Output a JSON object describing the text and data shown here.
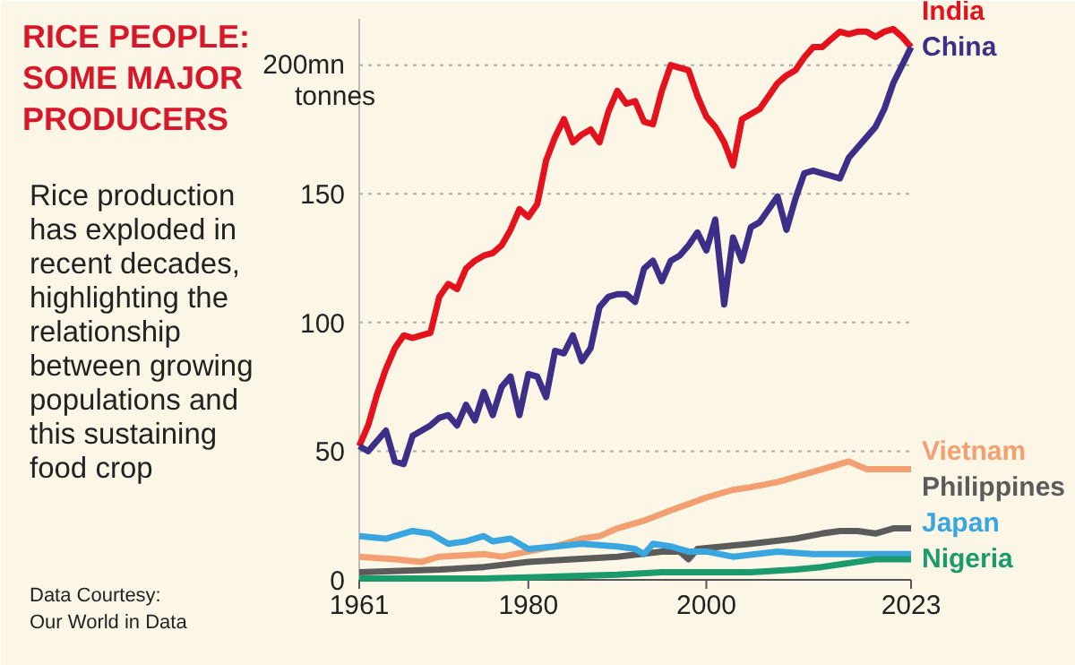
{
  "chart_data": {
    "type": "line",
    "title": "RICE PEOPLE: SOME MAJOR PRODUCERS",
    "subtitle": "Rice production has exploded in recent decades, highlighting the relationship between growing populations and this sustaining food crop",
    "ylabel": "tonnes",
    "annotations": [
      "Data Courtesy: Our World in Data"
    ],
    "xlim": [
      1961,
      2023
    ],
    "xticks": [
      1961,
      1980,
      2000,
      2023
    ],
    "ylim": [
      0,
      218
    ],
    "yticks": [
      0,
      50,
      100,
      150,
      {
        "value": 200,
        "label": "200mn"
      }
    ],
    "grid": "y",
    "legend": false,
    "line_style": "solid",
    "marker": "none",
    "series": [
      {
        "name": "India",
        "color": "#e3121c",
        "x": [
          1961,
          1962,
          1963,
          1964,
          1965,
          1966,
          1967,
          1968,
          1969,
          1970,
          1971,
          1972,
          1973,
          1974,
          1975,
          1976,
          1977,
          1978,
          1979,
          1980,
          1981,
          1982,
          1983,
          1984,
          1985,
          1986,
          1987,
          1988,
          1989,
          1990,
          1991,
          1992,
          1993,
          1994,
          1995,
          1996,
          1997,
          1998,
          1999,
          2000,
          2001,
          2002,
          2003,
          2004,
          2005,
          2006,
          2007,
          2008,
          2009,
          2010,
          2011,
          2012,
          2013,
          2014,
          2015,
          2016,
          2017,
          2018,
          2019,
          2020,
          2021,
          2022,
          2023
        ],
        "values": [
          52,
          60,
          72,
          82,
          90,
          95,
          94,
          95,
          96,
          110,
          115,
          113,
          121,
          124,
          126,
          127,
          130,
          136,
          144,
          141,
          146,
          163,
          172,
          179,
          170,
          173,
          175,
          170,
          182,
          190,
          185,
          186,
          178,
          177,
          190,
          200,
          199,
          198,
          188,
          180,
          176,
          170,
          161,
          179,
          181,
          183,
          188,
          193,
          196,
          198,
          203,
          207,
          207,
          210,
          213,
          212,
          213,
          213,
          211,
          213,
          214,
          211,
          207
        ]
      },
      {
        "name": "China",
        "color": "#3d2e88",
        "x": [
          1961,
          1962,
          1963,
          1964,
          1965,
          1966,
          1967,
          1968,
          1969,
          1970,
          1971,
          1972,
          1973,
          1974,
          1975,
          1976,
          1977,
          1978,
          1979,
          1980,
          1981,
          1982,
          1983,
          1984,
          1985,
          1986,
          1987,
          1988,
          1989,
          1990,
          1991,
          1992,
          1993,
          1994,
          1995,
          1996,
          1997,
          1998,
          1999,
          2000,
          2001,
          2002,
          2003,
          2004,
          2005,
          2006,
          2007,
          2008,
          2009,
          2010,
          2011,
          2012,
          2013,
          2014,
          2015,
          2016,
          2017,
          2018,
          2019,
          2020,
          2021,
          2022,
          2023
        ],
        "values": [
          52,
          50,
          54,
          58,
          46,
          45,
          56,
          58,
          60,
          63,
          64,
          60,
          68,
          62,
          73,
          64,
          75,
          79,
          64,
          80,
          79,
          71,
          89,
          88,
          95,
          85,
          90,
          106,
          110,
          111,
          111,
          108,
          121,
          124,
          116,
          124,
          126,
          130,
          135,
          128,
          140,
          107,
          133,
          124,
          137,
          139,
          144,
          149,
          136,
          148,
          158,
          159,
          158,
          157,
          156,
          164,
          168,
          172,
          176,
          183,
          193,
          200,
          207
        ]
      },
      {
        "name": "Vietnam",
        "color": "#f2a072",
        "x": [
          1961,
          1965,
          1968,
          1970,
          1975,
          1977,
          1980,
          1983,
          1986,
          1988,
          1990,
          1993,
          1996,
          2000,
          2003,
          2005,
          2008,
          2010,
          2013,
          2016,
          2018,
          2020,
          2023
        ],
        "values": [
          9,
          8,
          7,
          9,
          10,
          9,
          11,
          13,
          16,
          17,
          20,
          23,
          27,
          32,
          35,
          36,
          38,
          40,
          43,
          46,
          43,
          43,
          43
        ]
      },
      {
        "name": "Philippines",
        "color": "#5b5b5b",
        "x": [
          1961,
          1970,
          1975,
          1980,
          1985,
          1990,
          1995,
          1997,
          1998,
          1999,
          2005,
          2010,
          2013,
          2015,
          2017,
          2019,
          2021,
          2023
        ],
        "values": [
          3,
          4,
          5,
          7,
          8,
          9,
          11,
          11,
          8,
          12,
          14,
          16,
          18,
          19,
          19,
          18,
          20,
          20
        ]
      },
      {
        "name": "Japan",
        "color": "#3aa6e0",
        "x": [
          1961,
          1964,
          1967,
          1969,
          1971,
          1973,
          1975,
          1976,
          1978,
          1980,
          1983,
          1986,
          1990,
          1992,
          1993,
          1994,
          1996,
          1998,
          2000,
          2003,
          2008,
          2012,
          2015,
          2020,
          2023
        ],
        "values": [
          17,
          16,
          19,
          18,
          14,
          15,
          17,
          15,
          16,
          12,
          13,
          14,
          13,
          12,
          10,
          14,
          13,
          11,
          11,
          9,
          11,
          10,
          10,
          10,
          10
        ]
      },
      {
        "name": "Nigeria",
        "color": "#1b9a6b",
        "x": [
          1961,
          1970,
          1975,
          1980,
          1985,
          1990,
          1995,
          2000,
          2005,
          2010,
          2013,
          2015,
          2017,
          2019,
          2021,
          2023
        ],
        "values": [
          0.5,
          0.5,
          0.5,
          1,
          1.5,
          2,
          3,
          3,
          3,
          4,
          5,
          6,
          7,
          8,
          8,
          8
        ]
      }
    ]
  }
}
